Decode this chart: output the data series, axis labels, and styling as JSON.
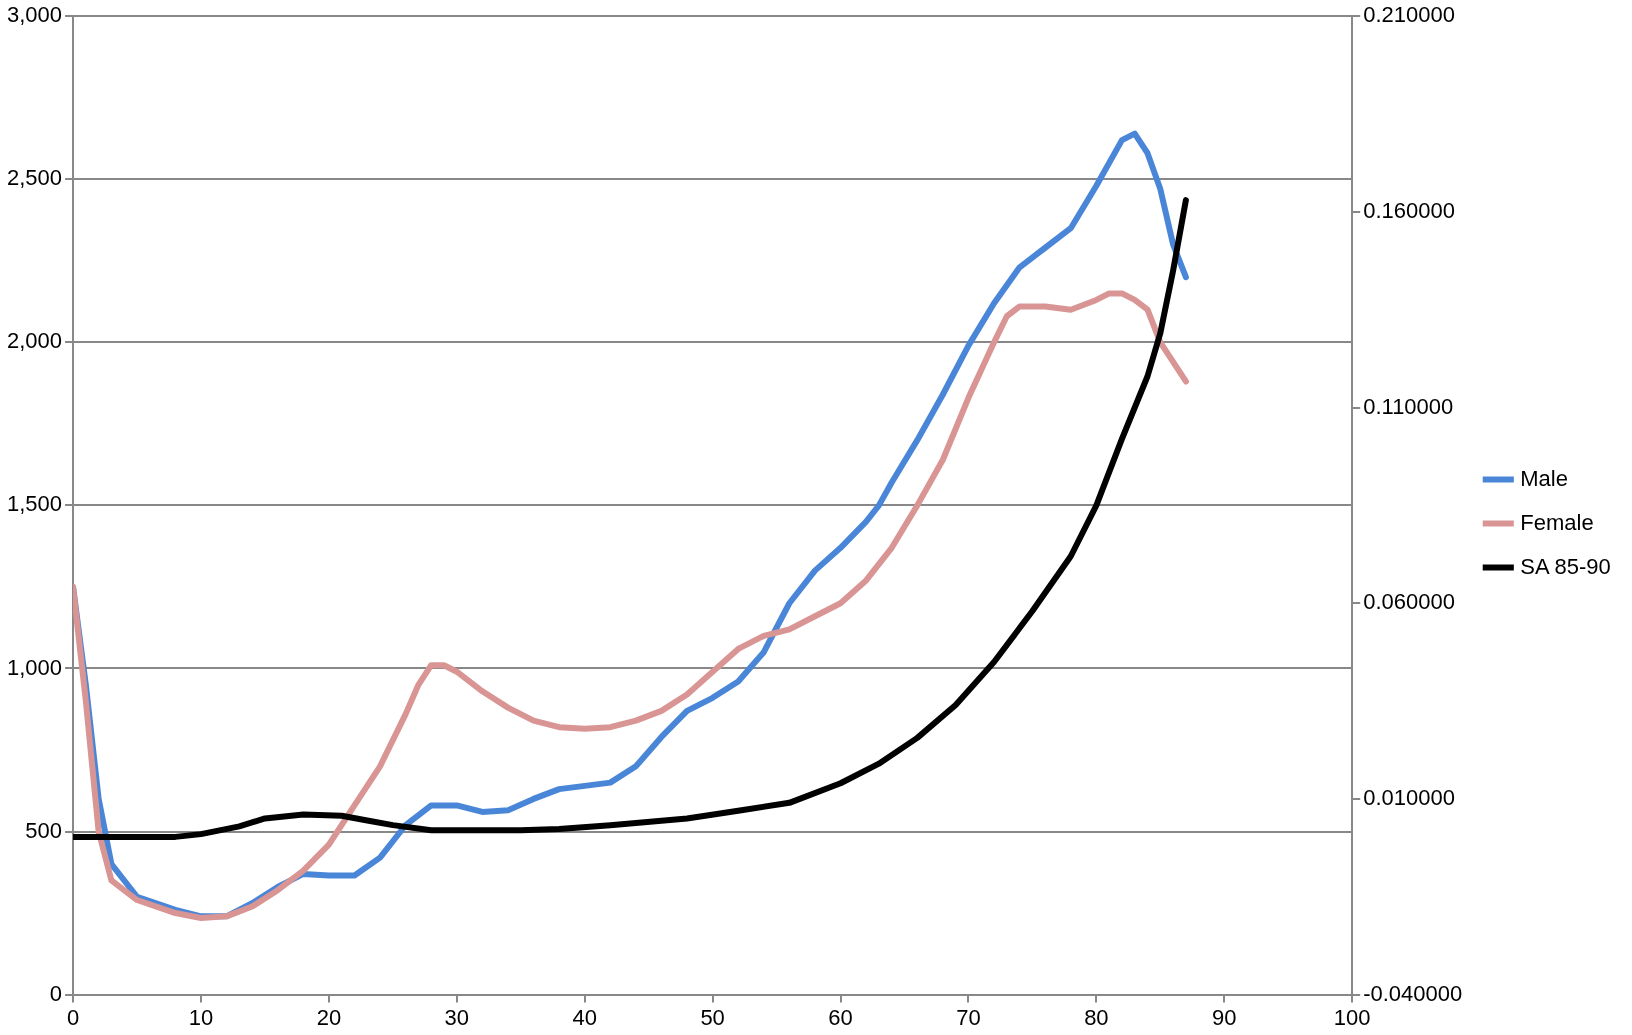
{
  "chart_data": {
    "type": "line",
    "xlim": [
      0,
      100
    ],
    "xticks": [
      0,
      10,
      20,
      30,
      40,
      50,
      60,
      70,
      80,
      90,
      100
    ],
    "ylim": [
      0,
      3000
    ],
    "yticks": [
      0,
      {
        "value": 500,
        "label": "500"
      },
      {
        "value": 1000,
        "label": "1,000"
      },
      {
        "value": 1500,
        "label": "1,500"
      },
      {
        "value": 2000,
        "label": "2,000"
      },
      {
        "value": 2500,
        "label": "2,500"
      },
      {
        "value": 3000,
        "label": "3,000"
      }
    ],
    "y2lim": [
      -0.04,
      0.21
    ],
    "y2ticks": [
      {
        "value": -0.04,
        "label": "-0.040000"
      },
      {
        "value": 0.01,
        "label": "0.010000"
      },
      {
        "value": 0.06,
        "label": "0.060000"
      },
      {
        "value": 0.11,
        "label": "0.110000"
      },
      {
        "value": 0.16,
        "label": "0.160000"
      },
      {
        "value": 0.21,
        "label": "0.210000"
      }
    ],
    "grid": "y",
    "legend": "right",
    "marker": "none",
    "line_style": "solid",
    "series": [
      {
        "name": "Male",
        "color": "#4a86d8",
        "x": [
          0,
          1,
          2,
          3,
          5,
          8,
          10,
          12,
          14,
          16,
          18,
          20,
          22,
          24,
          26,
          28,
          30,
          32,
          34,
          36,
          38,
          40,
          42,
          44,
          46,
          48,
          50,
          52,
          54,
          56,
          58,
          60,
          62,
          63,
          64,
          66,
          68,
          70,
          72,
          74,
          76,
          78,
          80,
          82,
          83,
          84,
          85,
          86,
          87
        ],
        "values": [
          1250,
          950,
          600,
          400,
          300,
          260,
          240,
          240,
          280,
          330,
          370,
          365,
          365,
          420,
          520,
          580,
          580,
          560,
          565,
          600,
          630,
          640,
          650,
          700,
          790,
          870,
          910,
          960,
          1050,
          1200,
          1300,
          1370,
          1450,
          1500,
          1570,
          1700,
          1840,
          1990,
          2120,
          2230,
          2290,
          2350,
          2480,
          2620,
          2640,
          2580,
          2470,
          2300,
          2200
        ]
      },
      {
        "name": "Female",
        "color": "#d99594",
        "x": [
          0,
          1,
          2,
          3,
          5,
          8,
          10,
          12,
          14,
          16,
          18,
          20,
          22,
          24,
          26,
          27,
          28,
          29,
          30,
          32,
          34,
          36,
          38,
          40,
          42,
          44,
          46,
          48,
          50,
          52,
          54,
          56,
          58,
          60,
          62,
          64,
          66,
          68,
          70,
          72,
          73,
          74,
          76,
          78,
          80,
          81,
          82,
          83,
          84,
          85,
          86,
          87
        ],
        "values": [
          1250,
          900,
          500,
          350,
          290,
          250,
          235,
          240,
          270,
          320,
          380,
          460,
          580,
          700,
          860,
          950,
          1010,
          1010,
          990,
          930,
          880,
          840,
          820,
          815,
          820,
          840,
          870,
          920,
          990,
          1060,
          1100,
          1120,
          1160,
          1200,
          1270,
          1370,
          1500,
          1640,
          1830,
          2000,
          2080,
          2110,
          2110,
          2100,
          2130,
          2150,
          2150,
          2130,
          2100,
          2000,
          1940,
          1880
        ]
      },
      {
        "name": "SA 85-90",
        "color": "#000000",
        "axis": "y2",
        "x": [
          0,
          8,
          10,
          13,
          15,
          18,
          21,
          23,
          25,
          28,
          35,
          38,
          42,
          48,
          52,
          56,
          60,
          63,
          66,
          69,
          72,
          75,
          78,
          80,
          82,
          84,
          85,
          86,
          87
        ],
        "values": [
          0.0003,
          0.0003,
          0.001,
          0.003,
          0.005,
          0.006,
          0.0057,
          0.0045,
          0.0033,
          0.002,
          0.002,
          0.0023,
          0.0033,
          0.005,
          0.007,
          0.009,
          0.014,
          0.019,
          0.0256,
          0.034,
          0.045,
          0.058,
          0.072,
          0.085,
          0.102,
          0.118,
          0.129,
          0.145,
          0.163
        ]
      }
    ]
  }
}
